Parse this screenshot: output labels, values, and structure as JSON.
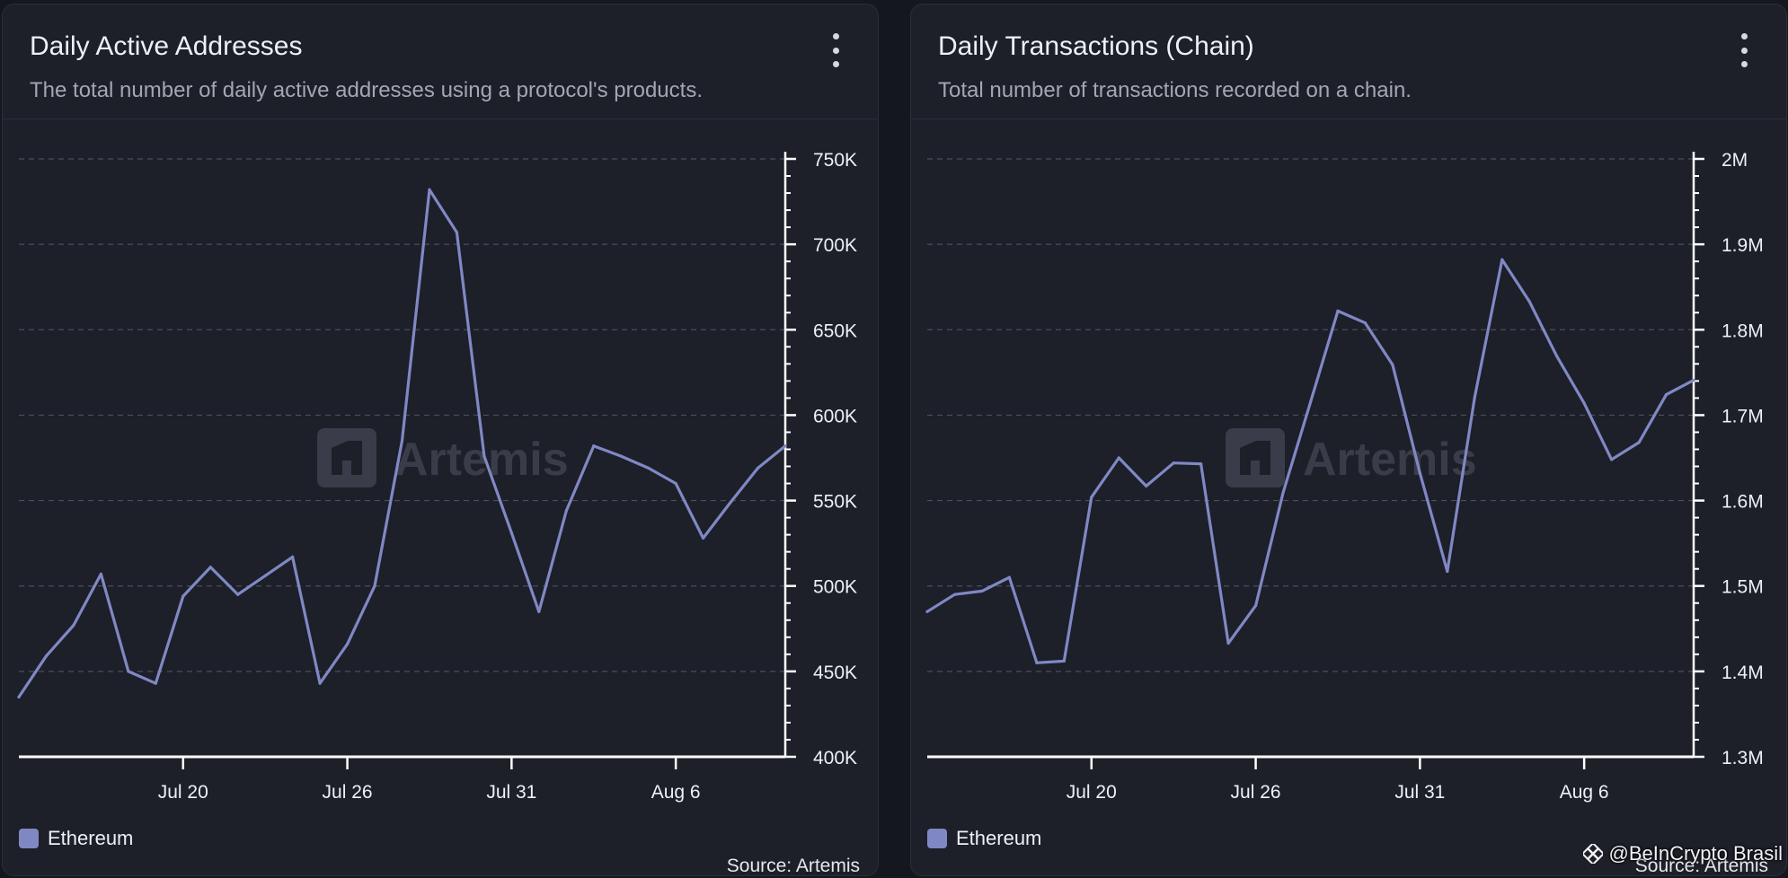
{
  "colors": {
    "series": "#8088c4",
    "accent": "#8088c4"
  },
  "panels": [
    {
      "title": "Daily Active Addresses",
      "subtitle": "The total number of daily active addresses using a protocol's products.",
      "menu_icon": "kebab-menu-icon",
      "watermark": "Artemis",
      "legend": "Ethereum",
      "source": "Source: Artemis"
    },
    {
      "title": "Daily Transactions (Chain)",
      "subtitle": "Total number of transactions recorded on a chain.",
      "menu_icon": "kebab-menu-icon",
      "watermark": "Artemis",
      "legend": "Ethereum",
      "source": "Source: Artemis"
    }
  ],
  "overlay": {
    "credit": "@BeInCrypto Brasil",
    "icon": "binance-logo-icon"
  },
  "chart_data": [
    {
      "type": "line",
      "title": "Daily Active Addresses",
      "x_tick_labels": [
        "Jul 20",
        "Jul 26",
        "Jul 31",
        "Aug 6"
      ],
      "x_tick_index": [
        6,
        12,
        18,
        24
      ],
      "y_tick_labels": [
        "400K",
        "450K",
        "500K",
        "550K",
        "600K",
        "650K",
        "700K",
        "750K"
      ],
      "ylim": [
        400000,
        750000
      ],
      "y_axis_position": "right",
      "grid": "horizontal-dashed",
      "legend_position": "bottom-left",
      "series": [
        {
          "name": "Ethereum",
          "values": [
            435000,
            459000,
            477000,
            507000,
            450000,
            443000,
            494000,
            511000,
            495000,
            506000,
            517000,
            443000,
            466000,
            500000,
            585000,
            732000,
            707000,
            576000,
            531000,
            485000,
            544000,
            582000,
            576000,
            569000,
            560000,
            528000,
            549000,
            569000,
            582000
          ]
        }
      ]
    },
    {
      "type": "line",
      "title": "Daily Transactions (Chain)",
      "x_tick_labels": [
        "Jul 20",
        "Jul 26",
        "Jul 31",
        "Aug 6"
      ],
      "x_tick_index": [
        6,
        12,
        18,
        24
      ],
      "y_tick_labels": [
        "1.3M",
        "1.4M",
        "1.5M",
        "1.6M",
        "1.7M",
        "1.8M",
        "1.9M",
        "2M"
      ],
      "ylim": [
        1300000,
        2000000
      ],
      "y_axis_position": "right",
      "grid": "horizontal-dashed",
      "legend_position": "bottom-left",
      "series": [
        {
          "name": "Ethereum",
          "values": [
            1470000,
            1490000,
            1494000,
            1510000,
            1410000,
            1412000,
            1604000,
            1650000,
            1617000,
            1644000,
            1643000,
            1433000,
            1477000,
            1609000,
            1715000,
            1822000,
            1808000,
            1759000,
            1632000,
            1517000,
            1721000,
            1882000,
            1833000,
            1769000,
            1714000,
            1648000,
            1668000,
            1724000,
            1741000
          ]
        }
      ]
    }
  ]
}
